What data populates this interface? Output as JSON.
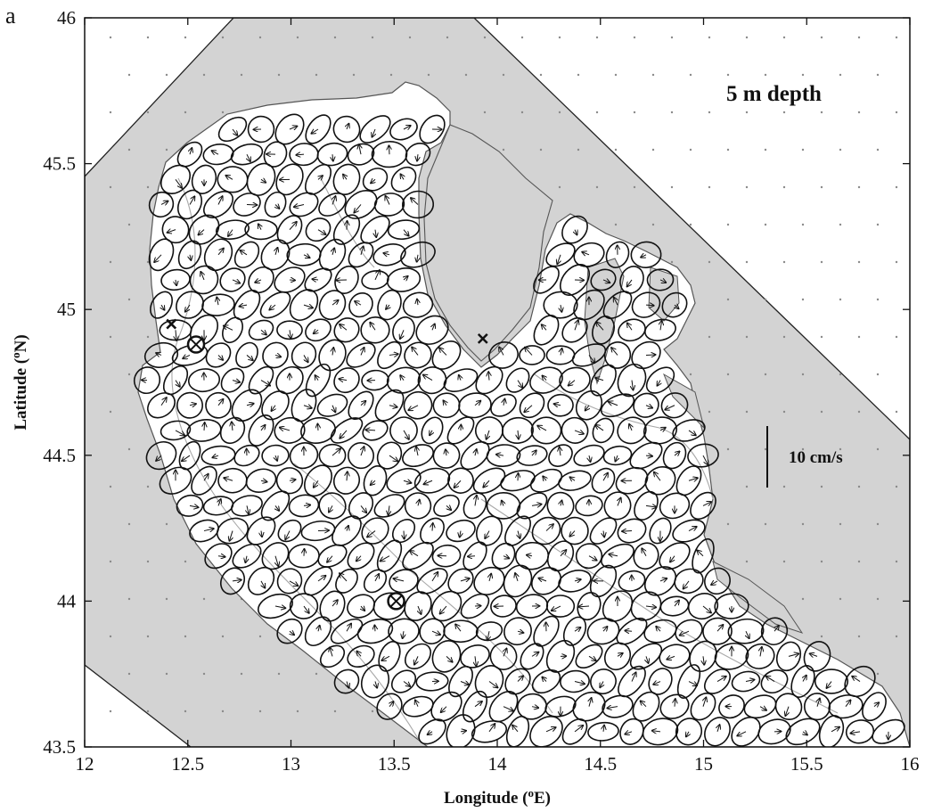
{
  "panel_label": "a",
  "depth_label": "5 m depth",
  "scale_bar": {
    "label": "10 cm/s",
    "value_cm_s": 10
  },
  "axes": {
    "xlabel_main": "Longitude (",
    "xlabel_sup": "o",
    "xlabel_end": "E)",
    "ylabel_main": "Latitude (",
    "ylabel_sup": "o",
    "ylabel_end": "N)",
    "xlim": [
      12,
      16
    ],
    "ylim": [
      43.5,
      46
    ],
    "xticks": [
      "12",
      "12.5",
      "13",
      "13.5",
      "14",
      "14.5",
      "15",
      "15.5",
      "16"
    ],
    "yticks": [
      "43.5",
      "44",
      "44.5",
      "45",
      "45.5",
      "46"
    ]
  },
  "markers": [
    {
      "type": "cross",
      "lon": 12.42,
      "lat": 44.95
    },
    {
      "type": "cross",
      "lon": 13.93,
      "lat": 44.9
    },
    {
      "type": "circle-cross",
      "lon": 12.54,
      "lat": 44.88
    },
    {
      "type": "circle-cross",
      "lon": 13.51,
      "lat": 44.0
    }
  ],
  "colors": {
    "land": "#d3d3d3",
    "sea": "#ffffff",
    "ink": "#111111",
    "grid_dot": "#8a8a8a",
    "isobath": "#a8a8a8"
  }
}
